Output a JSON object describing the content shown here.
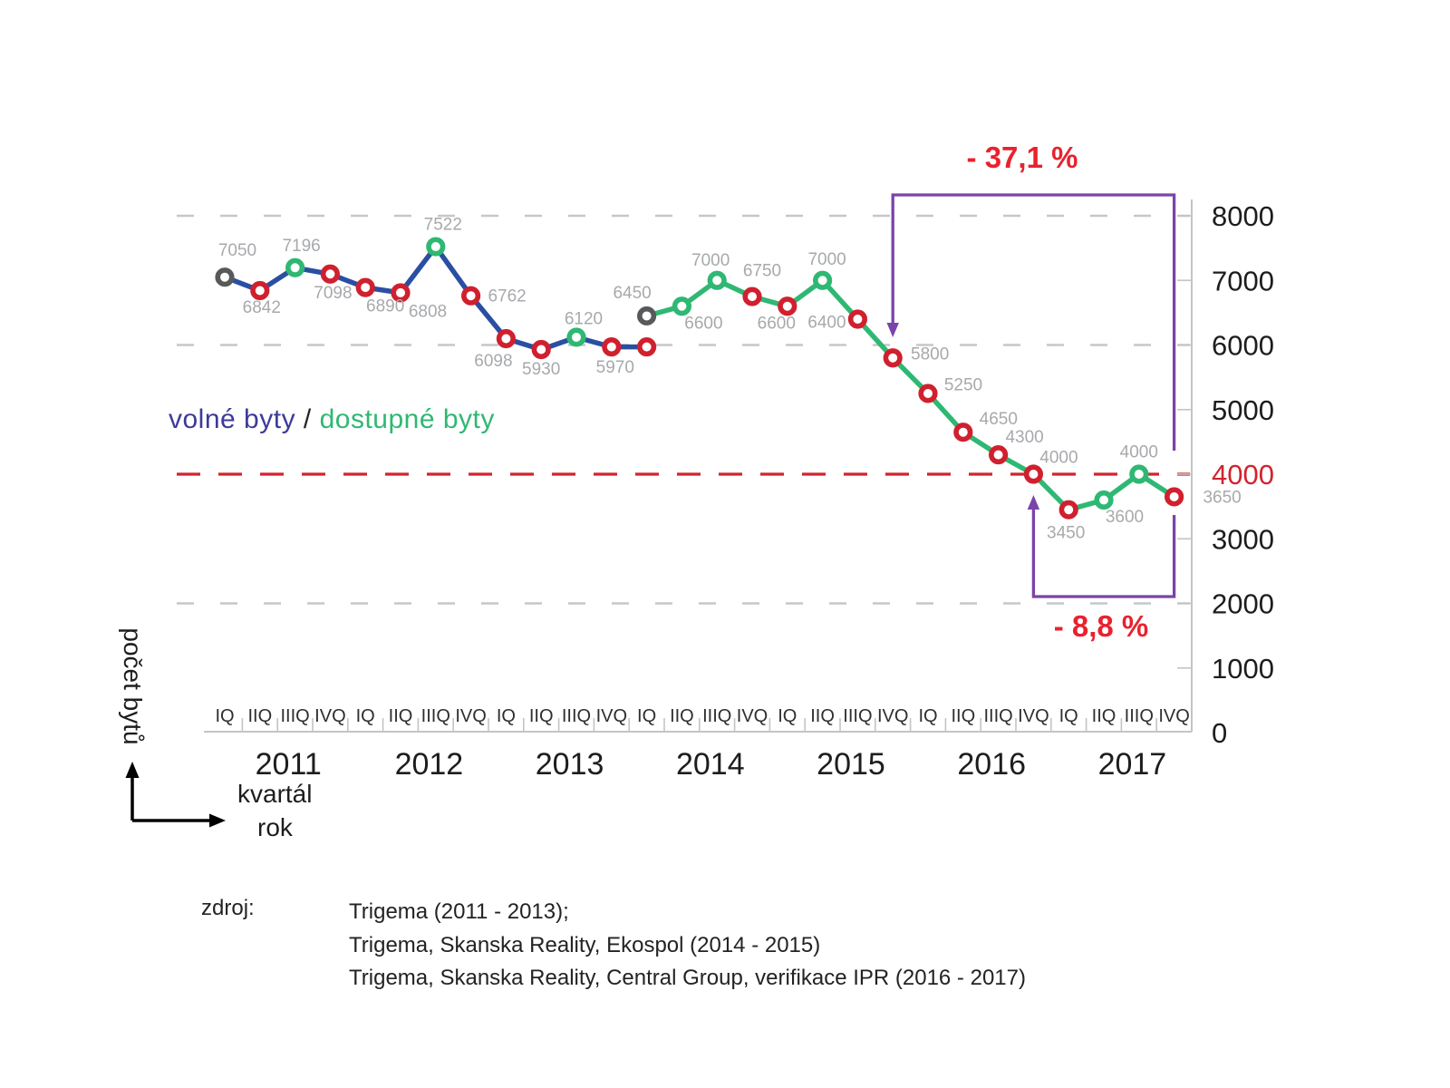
{
  "legend": {
    "series1_label": "volné byty",
    "separator": " / ",
    "series2_label": "dostupné byty"
  },
  "annotations": {
    "total_drop_label": "- 37,1 %",
    "recent_drop_label": "- 8,8 %"
  },
  "axes": {
    "y_title": "počet bytů",
    "x_title_quarter": "kvartál",
    "x_title_year": "rok",
    "y_tick_labels": [
      "8000",
      "7000",
      "6000",
      "5000",
      "4000",
      "3000",
      "2000",
      "1000",
      "0"
    ],
    "y_tick_highlight_value": 4000,
    "quarter_labels": [
      "IQ",
      "IIQ",
      "IIIQ",
      "IVQ"
    ],
    "year_labels": [
      "2011",
      "2012",
      "2013",
      "2014",
      "2015",
      "2016",
      "2017"
    ]
  },
  "source": {
    "label": "zdroj:",
    "lines": [
      "Trigema (2011 - 2013);",
      "Trigema, Skanska Reality, Ekospol (2014 - 2015)",
      "Trigema, Skanska Reality, Central Group, verifikace IPR (2016 - 2017)"
    ]
  },
  "colors": {
    "blue_line": "#2a4fa2",
    "legend_blue": "#3d3a99",
    "green_line": "#2fb873",
    "marker_red": "#d0202e",
    "marker_green": "#2fb873",
    "marker_gray": "#58595b",
    "data_label_gray": "#a7a9ac",
    "grid_gray": "#c6c7c9",
    "axis_gray": "#c3c4c6",
    "text_dark": "#1d1d1f",
    "red_accent": "#d2232f",
    "percent_red": "#e8222f",
    "purple": "#7a44a8"
  },
  "chart_data": {
    "type": "line",
    "x_unit": "quarter",
    "ylim": [
      0,
      8000
    ],
    "grid": "dashed-horizontal",
    "legend_position": "left-middle",
    "gridlines": [
      {
        "value": 8000,
        "color": "gray"
      },
      {
        "value": 6000,
        "color": "gray"
      },
      {
        "value": 4000,
        "color": "red"
      },
      {
        "value": 2000,
        "color": "gray"
      }
    ],
    "series": [
      {
        "name": "volné byty",
        "color_key": "blue_line",
        "points": [
          {
            "x": "2011-IQ",
            "value": 7050,
            "label": "7050",
            "marker": "gray",
            "dx": 14,
            "dy": -30
          },
          {
            "x": "2011-IIQ",
            "value": 6842,
            "label": "6842",
            "marker": "red",
            "dx": 2,
            "dy": 18
          },
          {
            "x": "2011-IIIQ",
            "value": 7196,
            "label": "7196",
            "marker": "green",
            "dx": 7,
            "dy": -25
          },
          {
            "x": "2011-IVQ",
            "value": 7098,
            "label": "7098",
            "marker": "red",
            "dx": 3,
            "dy": 20
          },
          {
            "x": "2012-IQ",
            "value": 6890,
            "label": "6890",
            "marker": "red",
            "dx": 22,
            "dy": 20
          },
          {
            "x": "2012-IIQ",
            "value": 6808,
            "label": "6808",
            "marker": "red",
            "dx": 30,
            "dy": 20
          },
          {
            "x": "2012-IIIQ",
            "value": 7522,
            "label": "7522",
            "marker": "green",
            "dx": 8,
            "dy": -25
          },
          {
            "x": "2012-IVQ",
            "value": 6762,
            "label": "6762",
            "marker": "red",
            "dx": 40,
            "dy": 0
          },
          {
            "x": "2013-IQ",
            "value": 6098,
            "label": "6098",
            "marker": "red",
            "dx": -14,
            "dy": 24
          },
          {
            "x": "2013-IIQ",
            "value": 5930,
            "label": "5930",
            "marker": "red",
            "dx": 0,
            "dy": 21
          },
          {
            "x": "2013-IIIQ",
            "value": 6120,
            "label": "6120",
            "marker": "green",
            "dx": 8,
            "dy": -21
          },
          {
            "x": "2013-IVQ",
            "value": 5970,
            "label": "5970",
            "marker": "red",
            "dx": 4,
            "dy": 22
          },
          {
            "x": "2014-IQ",
            "value": 5970,
            "label": "",
            "marker": "red",
            "dx": 0,
            "dy": 0
          }
        ]
      },
      {
        "name": "dostupné byty",
        "color_key": "green_line",
        "points": [
          {
            "x": "2014-IQ",
            "value": 6450,
            "label": "6450",
            "marker": "gray",
            "dx": -16,
            "dy": -26
          },
          {
            "x": "2014-IIQ",
            "value": 6600,
            "label": "6600",
            "marker": "green",
            "dx": 24,
            "dy": 18
          },
          {
            "x": "2014-IIIQ",
            "value": 7000,
            "label": "7000",
            "marker": "green",
            "dx": -7,
            "dy": -23
          },
          {
            "x": "2014-IVQ",
            "value": 6750,
            "label": "6750",
            "marker": "red",
            "dx": 11,
            "dy": -29
          },
          {
            "x": "2015-IQ",
            "value": 6600,
            "label": "6600",
            "marker": "red",
            "dx": -12,
            "dy": 18
          },
          {
            "x": "2015-IIQ",
            "value": 7000,
            "label": "7000",
            "marker": "green",
            "dx": 5,
            "dy": -24
          },
          {
            "x": "2015-IIIQ",
            "value": 6400,
            "label": "6400",
            "marker": "red",
            "dx": -34,
            "dy": 3
          },
          {
            "x": "2015-IVQ",
            "value": 5800,
            "label": "5800",
            "marker": "red",
            "dx": 41,
            "dy": -5
          },
          {
            "x": "2016-IQ",
            "value": 5250,
            "label": "5250",
            "marker": "red",
            "dx": 39,
            "dy": -10
          },
          {
            "x": "2016-IIQ",
            "value": 4650,
            "label": "4650",
            "marker": "red",
            "dx": 39,
            "dy": -15
          },
          {
            "x": "2016-IIIQ",
            "value": 4300,
            "label": "4300",
            "marker": "red",
            "dx": 29,
            "dy": -20
          },
          {
            "x": "2016-IVQ",
            "value": 4000,
            "label": "4000",
            "marker": "red",
            "dx": 28,
            "dy": -19
          },
          {
            "x": "2017-IQ",
            "value": 3450,
            "label": "3450",
            "marker": "red",
            "dx": -3,
            "dy": 25
          },
          {
            "x": "2017-IIQ",
            "value": 3600,
            "label": "3600",
            "marker": "green",
            "dx": 23,
            "dy": 18
          },
          {
            "x": "2017-IIIQ",
            "value": 4000,
            "label": "4000",
            "marker": "green",
            "dx": 0,
            "dy": -25
          },
          {
            "x": "2017-IVQ",
            "value": 3650,
            "label": "3650",
            "marker": "red",
            "dx": 53,
            "dy": 0
          }
        ]
      }
    ],
    "brackets": [
      {
        "label": "- 37,1 %",
        "from_x": "2015-IVQ",
        "to_x": "2017-IVQ",
        "position": "top"
      },
      {
        "label": "- 8,8 %",
        "from_x": "2016-IVQ",
        "to_x": "2017-IVQ",
        "position": "bottom"
      }
    ]
  }
}
